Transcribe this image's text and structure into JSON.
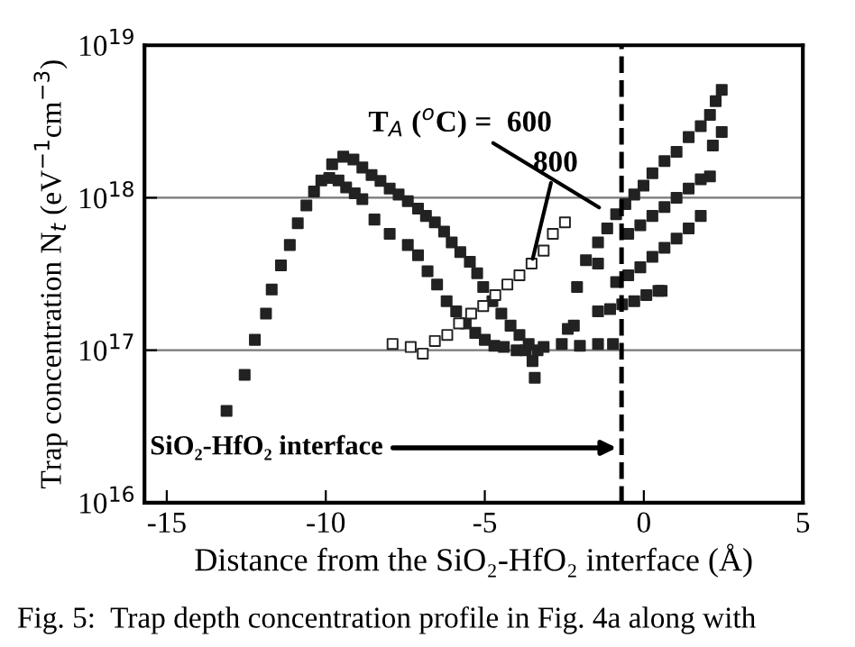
{
  "chart_data": {
    "type": "scatter",
    "xlabel": "Distance from the SiO₂-HfO₂ interface (Å)",
    "ylabel": "Trap concentration N$_{t}$ (eV$^{−1}$cm$^{−3}$)",
    "xlim": [
      -15.7,
      5
    ],
    "xticks": [
      -15,
      -10,
      -5,
      0,
      5
    ],
    "ylim": [
      1e+16,
      1e+19
    ],
    "log": true,
    "yticks": [
      {
        "value": 1e+16,
        "label": "10$^{16}$"
      },
      {
        "value": 1e+17,
        "label": "10$^{17}$"
      },
      {
        "value": 1e+18,
        "label": "10$^{18}$"
      },
      {
        "value": 1e+19,
        "label": "10$^{19}$"
      }
    ],
    "grid": "y",
    "marker": "square",
    "series": [
      {
        "color": "#222222",
        "x": [
          -13.12,
          -12.55,
          -12.23,
          -11.88,
          -11.7,
          -11.41,
          -11.13,
          -10.88,
          -10.61,
          -10.37,
          -10.14,
          -9.89,
          -9.6,
          -9.36,
          -9.09,
          -8.85,
          -8.47,
          -7.99,
          -7.42,
          -7.1,
          -6.8,
          -6.5,
          -6.2,
          -5.9,
          -5.6,
          -5.3,
          -5.0,
          -4.7,
          -4.4,
          -4.0,
          -3.5,
          -3.43,
          -9.8,
          -9.45,
          -9.13,
          -8.85,
          -8.56,
          -8.28,
          -7.99,
          -7.71,
          -7.42,
          -7.1,
          -6.85,
          -6.57,
          -6.28,
          -6.04,
          -5.77,
          -5.47,
          -5.24,
          -5.05,
          -4.76,
          -4.48,
          -4.19,
          -3.91,
          -3.62,
          -3.34,
          -3.72,
          -3.15,
          -2.58,
          -2.01,
          -1.44,
          -0.97,
          -2.39,
          -2.2,
          -2.1,
          -1.82,
          -1.44,
          -1.15,
          -0.87,
          -0.58,
          -0.3,
          -0.01,
          0.27,
          0.65,
          1.03,
          1.41,
          1.79,
          2.08,
          2.26,
          2.45,
          -1.44,
          -0.49,
          -0.11,
          0.27,
          0.65,
          1.03,
          1.41,
          1.79,
          2.17,
          2.45,
          -0.87,
          -0.49,
          -0.11,
          0.27,
          0.65,
          1.03,
          1.41,
          1.79,
          2.08,
          -1.44,
          -1.06,
          -0.68,
          -0.3,
          0.08,
          0.46,
          0.56
        ],
        "values": [
          4e+16,
          6.9e+16,
          1.17e+17,
          1.74e+17,
          2.5e+17,
          3.6e+17,
          4.9e+17,
          6.8e+17,
          8.9e+17,
          1.1e+18,
          1.3e+18,
          1.35e+18,
          1.3e+18,
          1.17e+18,
          1.07e+18,
          9.8e+17,
          7.2e+17,
          5.8e+17,
          4.9e+17,
          4.2e+17,
          3.3e+17,
          2.7e+17,
          2.1e+17,
          1.8e+17,
          1.5e+17,
          1.3e+17,
          1.17e+17,
          1.07e+17,
          1.05e+17,
          1e+17,
          8.5e+16,
          6.6e+16,
          1.66e+18,
          1.86e+18,
          1.78e+18,
          1.58e+18,
          1.41e+18,
          1.29e+18,
          1.15e+18,
          1.05e+18,
          9.5e+17,
          8.5e+17,
          7.6e+17,
          6.9e+17,
          6e+17,
          5.1e+17,
          4.4e+17,
          3.8e+17,
          3.2e+17,
          2.6e+17,
          2.1e+17,
          1.74e+17,
          1.45e+17,
          1.26e+17,
          1.1e+17,
          1e+17,
          1e+17,
          1.05e+17,
          1.1e+17,
          1.07e+17,
          1.1e+17,
          1.1e+17,
          1.38e+17,
          1.45e+17,
          2.6e+17,
          3.9e+17,
          5.1e+17,
          6.3e+17,
          7.8e+17,
          9.1e+17,
          1.05e+18,
          1.2e+18,
          1.45e+18,
          1.74e+18,
          2e+18,
          2.5e+18,
          2.95e+18,
          3.5e+18,
          4.3e+18,
          5.1e+18,
          3.7e+17,
          5.8e+17,
          6.6e+17,
          7.6e+17,
          8.7e+17,
          1e+18,
          1.15e+18,
          1.32e+18,
          2.2e+18,
          2.7e+18,
          2.8e+17,
          3.1e+17,
          3.5e+17,
          4.1e+17,
          4.7e+17,
          5.4e+17,
          6.3e+17,
          7.6e+17,
          1.38e+18,
          1.8e+17,
          1.86e+17,
          2e+17,
          2.1e+17,
          2.3e+17,
          2.45e+17,
          2.45e+17
        ]
      },
      {
        "color": "#ffffff",
        "x": [
          -7.9,
          -7.33,
          -6.95,
          -6.57,
          -6.18,
          -5.81,
          -5.43,
          -5.05,
          -4.67,
          -4.29,
          -3.91,
          -3.53,
          -3.15,
          -2.86,
          -2.48
        ],
        "values": [
          1.1e+17,
          1.05e+17,
          9.5e+16,
          1.15e+17,
          1.26e+17,
          1.5e+17,
          1.74e+17,
          1.95e+17,
          2.3e+17,
          2.7e+17,
          3.1e+17,
          3.7e+17,
          4.5e+17,
          5.8e+17,
          6.9e+17
        ]
      }
    ],
    "ref_lines": [
      {
        "axis": "x",
        "value": -0.7,
        "label": "SiO₂-HfO₂ interface",
        "line_style": "dashed",
        "color": "#000000"
      }
    ],
    "annotations": [
      {
        "text": "T$_{A}$ ($^{o}$C) =  600",
        "x": -1.27,
        "y": 8.3e+17
      },
      {
        "text": "800",
        "x": -3.53,
        "y": 3.7e+17
      },
      "Fig. 5:  Trap depth concentration profile in Fig. 4a along with"
    ]
  }
}
